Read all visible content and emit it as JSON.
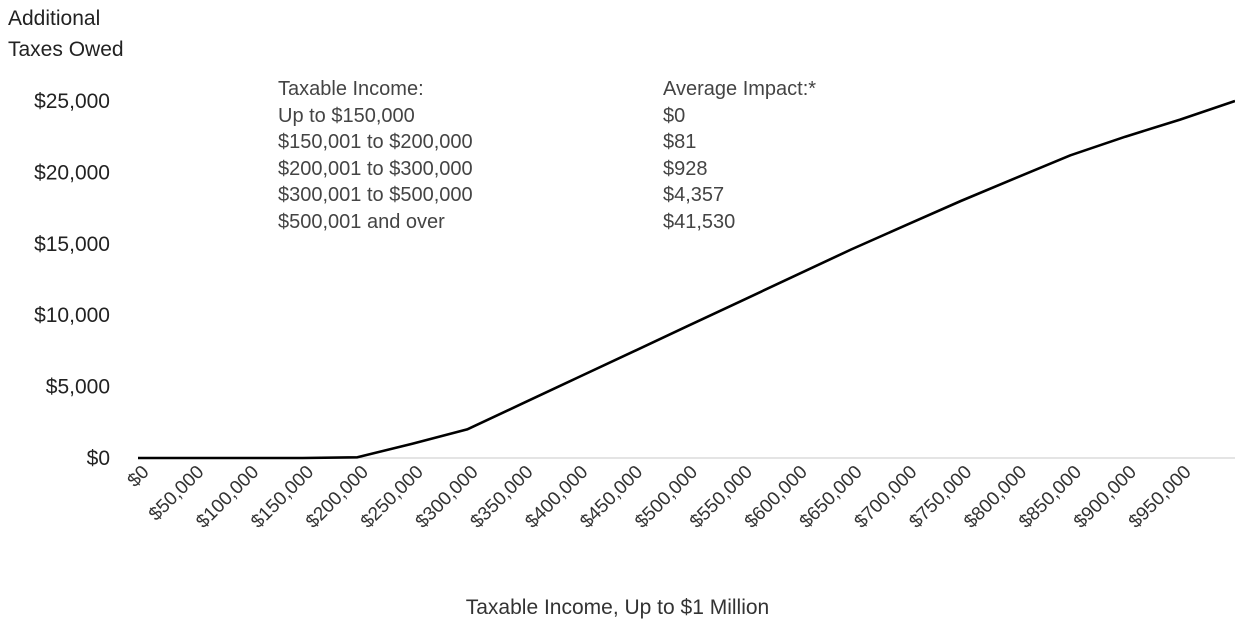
{
  "chart_data": {
    "type": "line",
    "ylabel": [
      "Additional",
      "Taxes Owed"
    ],
    "xlabel": "Taxable Income, Up to $1 Million",
    "y_ticks": [
      "$0",
      "$5,000",
      "$10,000",
      "$15,000",
      "$20,000",
      "$25,000"
    ],
    "y_tick_values": [
      0,
      5000,
      10000,
      15000,
      20000,
      25000
    ],
    "x_ticks": [
      "$0",
      "$50,000",
      "$100,000",
      "$150,000",
      "$200,000",
      "$250,000",
      "$300,000",
      "$350,000",
      "$400,000",
      "$450,000",
      "$500,000",
      "$550,000",
      "$600,000",
      "$650,000",
      "$700,000",
      "$750,000",
      "$800,000",
      "$850,000",
      "$900,000",
      "$950,000"
    ],
    "x_tick_values": [
      0,
      50000,
      100000,
      150000,
      200000,
      250000,
      300000,
      350000,
      400000,
      450000,
      500000,
      550000,
      600000,
      650000,
      700000,
      750000,
      800000,
      850000,
      900000,
      950000
    ],
    "xlim": [
      0,
      1000000
    ],
    "ylim": [
      0,
      25000
    ],
    "grid": false,
    "series": [
      {
        "color": "#000000",
        "x": [
          0,
          150000,
          200000,
          250000,
          300000,
          350000,
          400000,
          450000,
          500000,
          550000,
          600000,
          650000,
          700000,
          750000,
          800000,
          850000,
          900000,
          950000,
          1000000
        ],
        "y": [
          0,
          0,
          50,
          1000,
          2000,
          3800,
          5600,
          7400,
          9200,
          11000,
          12800,
          14600,
          16300,
          18000,
          19600,
          21200,
          22500,
          23700,
          25000
        ]
      }
    ],
    "table": {
      "header": {
        "income": "Taxable Income:",
        "impact": "Average Impact:*"
      },
      "rows": [
        {
          "income": "Up to $150,000",
          "impact": "$0"
        },
        {
          "income": "$150,001 to $200,000",
          "impact": "$81"
        },
        {
          "income": "$200,001 to $300,000",
          "impact": "$928"
        },
        {
          "income": "$300,001 to $500,000",
          "impact": "$4,357"
        },
        {
          "income": "$500,001 and over",
          "impact": "$41,530"
        }
      ]
    }
  }
}
